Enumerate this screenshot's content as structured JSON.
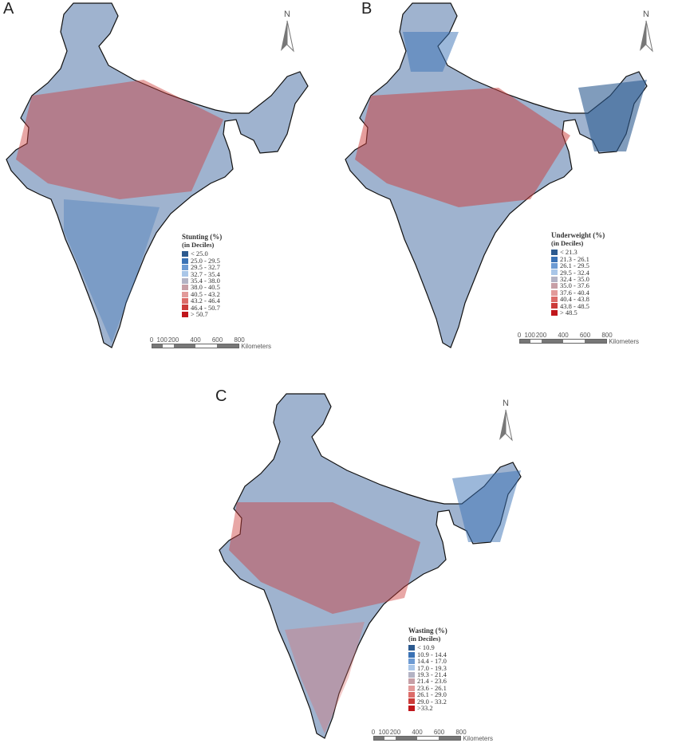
{
  "north_label": "N",
  "scale": {
    "ticks": [
      "0",
      "100",
      "200",
      "400",
      "600",
      "800"
    ],
    "unit": "Kilometers"
  },
  "panels": [
    {
      "letter": "A",
      "legend_title": "Stunting (%)",
      "legend_sub": "(in Deciles)",
      "classes": [
        "< 25.0",
        "25.0 - 29.5",
        "29.5 - 32.7",
        "32.7 - 35.4",
        "35.4 - 38.0",
        "38.0 - 40.5",
        "40.5 - 43.2",
        "43.2 - 46.4",
        "46.4 - 50.7",
        "> 50.7"
      ]
    },
    {
      "letter": "B",
      "legend_title": "Underweight (%)",
      "legend_sub": "(in Deciles)",
      "classes": [
        "< 21.3",
        "21.3 - 26.1",
        "26.1 - 29.5",
        "29.5 - 32.4",
        "32.4 - 35.0",
        "35.0 - 37.6",
        "37.6 - 40.4",
        "40.4 - 43.8",
        "43.8 - 48.5",
        "> 48.5"
      ]
    },
    {
      "letter": "C",
      "legend_title": "Wasting (%)",
      "legend_sub": "(in Deciles)",
      "classes": [
        "< 10.9",
        "10.9 - 14.4",
        "14.4 - 17.0",
        "17.0 - 19.3",
        "19.3 - 21.4",
        "21.4 - 23.6",
        "23.6 - 26.1",
        "26.1 - 29.0",
        "29.0 - 33.2",
        ">33.2"
      ]
    }
  ],
  "decile_colors": [
    "#2c5a8f",
    "#3a72b5",
    "#6d9bd3",
    "#a9c6e8",
    "#b3b3c4",
    "#c79fa6",
    "#e29a99",
    "#dc6b68",
    "#cc3b39",
    "#c0161b"
  ]
}
